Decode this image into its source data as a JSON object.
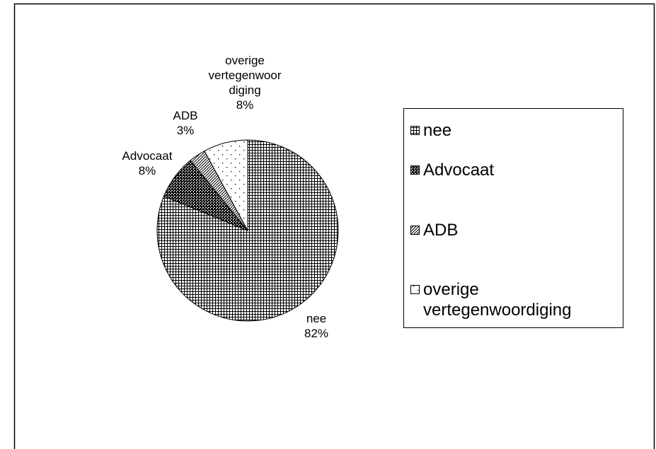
{
  "chart_data": {
    "type": "pie",
    "categories": [
      "nee",
      "Advocaat",
      "ADB",
      "overige vertegenwoordiging"
    ],
    "values": [
      82,
      8,
      3,
      8
    ],
    "value_labels": [
      "82%",
      "8%",
      "3%",
      "8%"
    ]
  }
}
